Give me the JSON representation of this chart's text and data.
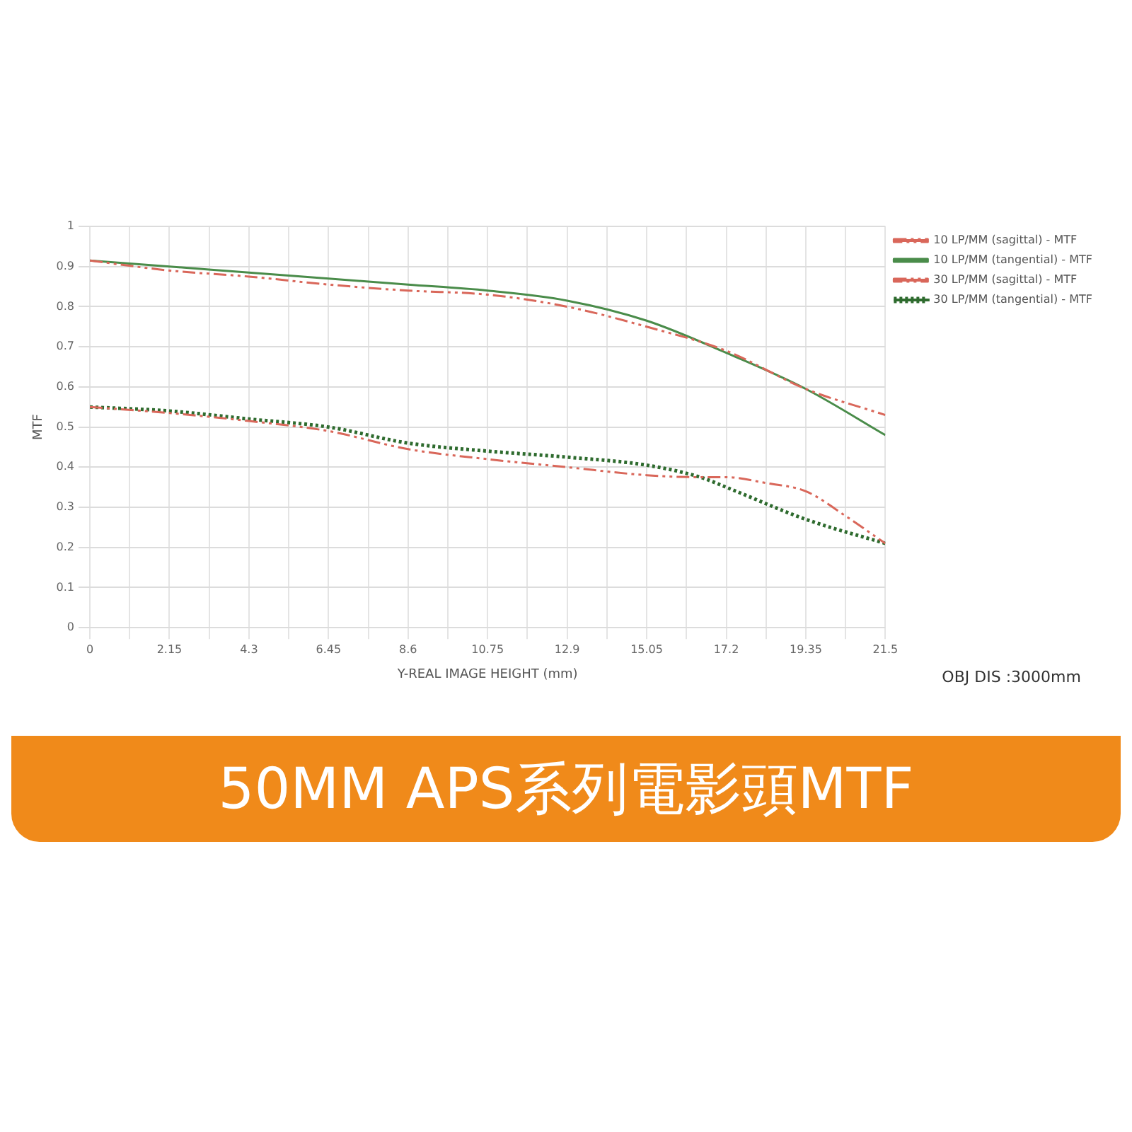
{
  "chart_data": {
    "type": "line",
    "title": "50MM APS系列電影頭MTF",
    "xlabel": "Y-REAL IMAGE HEIGHT (mm)",
    "ylabel": "MTF",
    "annotations": [
      "OBJ DIS :3000mm"
    ],
    "xlim": [
      0,
      21.5
    ],
    "xticks": [
      0,
      {
        "value": 1.075,
        "label": null
      },
      2.15,
      {
        "value": 3.225,
        "label": null
      },
      4.3,
      {
        "value": 5.375,
        "label": null
      },
      6.45,
      {
        "value": 7.525,
        "label": null
      },
      8.6,
      {
        "value": 9.675,
        "label": null
      },
      10.75,
      {
        "value": 11.825,
        "label": null
      },
      12.9,
      {
        "value": 13.975,
        "label": null
      },
      15.05,
      {
        "value": 16.125,
        "label": null
      },
      17.2,
      {
        "value": 18.275,
        "label": null
      },
      19.35,
      {
        "value": 20.425,
        "label": null
      },
      21.5
    ],
    "ylim": [
      0,
      1
    ],
    "yticks": [
      0,
      0.1,
      0.2,
      0.3,
      0.4,
      0.5,
      0.6,
      0.7,
      0.8,
      0.9,
      1
    ],
    "grid": true,
    "legend": "top right",
    "marker": "none",
    "series": [
      {
        "name": "10 LP/MM (sagittal) - MTF",
        "color": "#d9675a",
        "line_style": "dashed",
        "x": [
          0,
          2.15,
          4.3,
          6.45,
          8.6,
          10.75,
          12.9,
          15.05,
          17.2,
          19.35,
          21.5
        ],
        "values": [
          0.915,
          0.89,
          0.875,
          0.855,
          0.84,
          0.83,
          0.8,
          0.75,
          0.69,
          0.595,
          0.53
        ]
      },
      {
        "name": "10 LP/MM (tangential) - MTF",
        "color": "#4a8c4a",
        "line_style": "solid",
        "x": [
          0,
          2.15,
          4.3,
          6.45,
          8.6,
          10.75,
          12.9,
          15.05,
          17.2,
          19.35,
          21.5
        ],
        "values": [
          0.915,
          0.9,
          0.885,
          0.87,
          0.855,
          0.84,
          0.815,
          0.765,
          0.685,
          0.595,
          0.48
        ]
      },
      {
        "name": "30 LP/MM (sagittal) - MTF",
        "color": "#d9675a",
        "line_style": "dashed",
        "x": [
          0,
          2.15,
          4.3,
          6.45,
          8.6,
          10.75,
          12.9,
          15.05,
          16.5,
          17.2,
          18.3,
          19.35,
          20.4,
          21.5
        ],
        "values": [
          0.55,
          0.535,
          0.515,
          0.49,
          0.445,
          0.42,
          0.4,
          0.38,
          0.375,
          0.375,
          0.36,
          0.34,
          0.28,
          0.21
        ]
      },
      {
        "name": "30 LP/MM (tangential) - MTF",
        "color": "#2e6b2e",
        "line_style": "dotted",
        "x": [
          0,
          2.15,
          4.3,
          6.45,
          8.6,
          10.75,
          12.9,
          15.05,
          16.5,
          17.2,
          19.35,
          21.5
        ],
        "values": [
          0.55,
          0.54,
          0.52,
          0.5,
          0.46,
          0.44,
          0.425,
          0.405,
          0.375,
          0.35,
          0.27,
          0.21
        ]
      }
    ]
  }
}
